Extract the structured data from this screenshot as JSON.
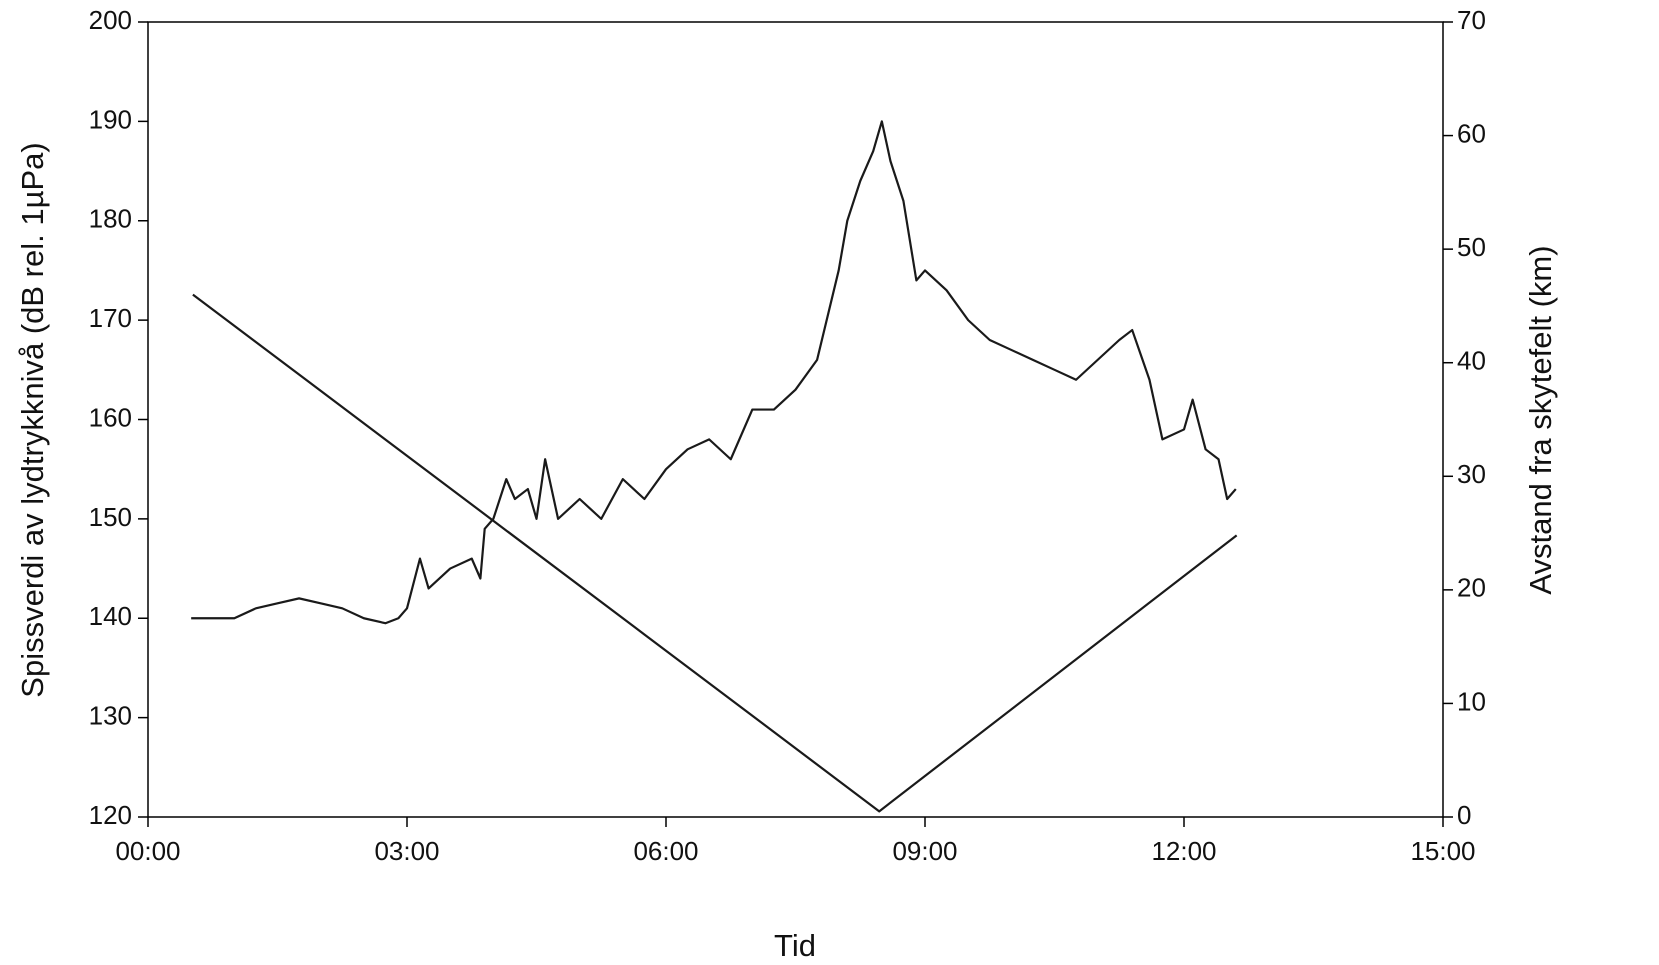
{
  "chart_data": {
    "type": "line",
    "x_label": "Tid",
    "y_label": "Spissverdi av lydtrykknivå (dB rel. 1µPa)",
    "y2_label": "Avstand fra skytefelt (km)",
    "xlim": [
      0,
      15
    ],
    "xticks": [
      {
        "value": 0,
        "label": "00:00"
      },
      {
        "value": 3,
        "label": "03:00"
      },
      {
        "value": 6,
        "label": "06:00"
      },
      {
        "value": 9,
        "label": "09:00"
      },
      {
        "value": 12,
        "label": "12:00"
      },
      {
        "value": 15,
        "label": "15:00"
      }
    ],
    "ylim": [
      120,
      200
    ],
    "yticks": [
      120,
      130,
      140,
      150,
      160,
      170,
      180,
      190,
      200
    ],
    "y2lim": [
      0,
      70
    ],
    "y2ticks": [
      0,
      10,
      20,
      30,
      40,
      50,
      60,
      70
    ],
    "series": [
      {
        "color": "#1a1a1a",
        "x": [
          0.5,
          0.75,
          1.0,
          1.25,
          1.5,
          1.75,
          2.0,
          2.25,
          2.5,
          2.75,
          2.9,
          3.0,
          3.15,
          3.25,
          3.5,
          3.75,
          3.85,
          3.9,
          4.0,
          4.15,
          4.25,
          4.4,
          4.5,
          4.6,
          4.75,
          5.0,
          5.25,
          5.5,
          5.75,
          6.0,
          6.25,
          6.5,
          6.75,
          7.0,
          7.25,
          7.5,
          7.75,
          8.0,
          8.1,
          8.25,
          8.4,
          8.5,
          8.6,
          8.75,
          8.9,
          9.0,
          9.25,
          9.5,
          9.75,
          10.0,
          10.25,
          10.5,
          10.75,
          11.0,
          11.25,
          11.4,
          11.6,
          11.75,
          12.0,
          12.1,
          12.25,
          12.4,
          12.5,
          12.6
        ],
        "values": [
          140,
          140,
          140,
          141,
          141.5,
          142,
          141.5,
          141,
          140,
          139.5,
          140,
          141,
          146,
          143,
          145,
          146,
          144,
          149,
          150,
          154,
          152,
          153,
          150,
          156,
          150,
          152,
          150,
          154,
          152,
          155,
          157,
          158,
          156,
          161,
          161,
          163,
          166,
          175,
          180,
          184,
          187,
          190,
          186,
          182,
          174,
          175,
          173,
          170,
          168,
          167,
          166,
          165,
          164,
          166,
          168,
          169,
          164,
          158,
          159,
          162,
          157,
          156,
          152,
          153
        ]
      },
      {
        "color": "#1a1a1a",
        "axis": "y2",
        "x": [
          0.52,
          8.47,
          12.61
        ],
        "values": [
          46,
          0.5,
          24.8
        ]
      }
    ]
  }
}
